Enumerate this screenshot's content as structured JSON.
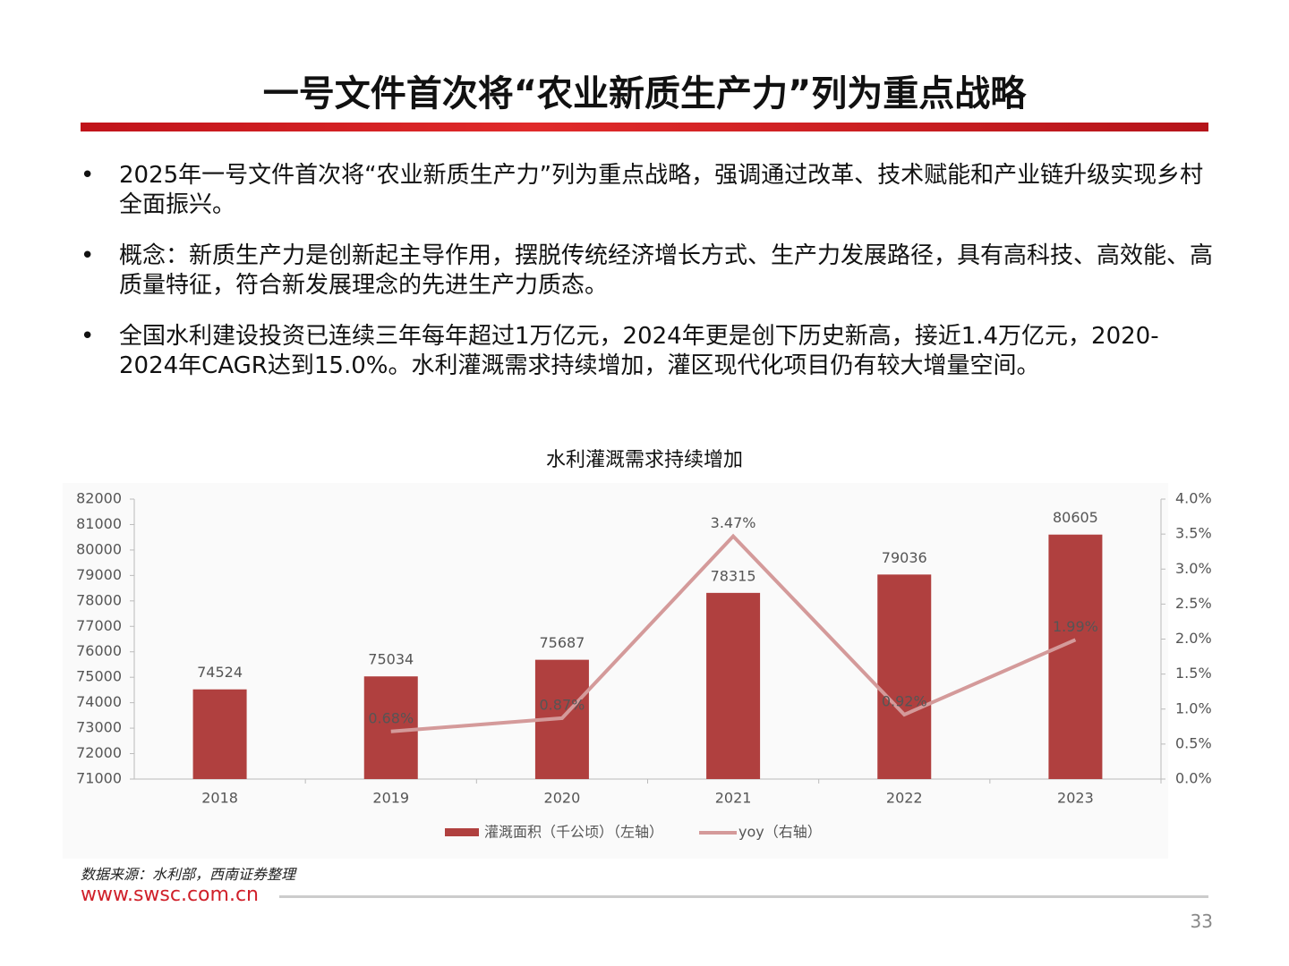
{
  "header": {
    "title": "一号文件首次将“农业新质生产力”列为重点战略"
  },
  "bullets": [
    "2025年一号文件首次将“农业新质生产力”列为重点战略，强调通过改革、技术赋能和产业链升级实现乡村全面振兴。",
    "概念：新质生产力是创新起主导作用，摆脱传统经济增长方式、生产力发展路径，具有高科技、高效能、高质量特征，符合新发展理念的先进生产力质态。",
    "全国水利建设投资已连续三年每年超过1万亿元，2024年更是创下历史新高，接近1.4万亿元，2020-2024年CAGR达到15.0%。水利灌溉需求持续增加，灌区现代化项目仍有较大增量空间。"
  ],
  "chart_data": {
    "type": "bar-line",
    "title": "水利灌溉需求持续增加",
    "categories": [
      "2018",
      "2019",
      "2020",
      "2021",
      "2022",
      "2023"
    ],
    "series": [
      {
        "name": "灌溉面积（千公顷）（左轴）",
        "type": "bar",
        "color": "#b0403f",
        "values": [
          74524,
          75034,
          75687,
          78315,
          79036,
          80605
        ]
      },
      {
        "name": "yoy（右轴）",
        "type": "line",
        "axis": "y2",
        "color": "#d49a9a",
        "values": [
          null,
          0.68,
          0.87,
          3.47,
          0.92,
          1.99
        ],
        "value_labels": [
          null,
          "0.68%",
          "0.87%",
          "3.47%",
          "0.92%",
          "1.99%"
        ]
      }
    ],
    "ylim": [
      71000,
      82000
    ],
    "yticks": [
      71000,
      72000,
      73000,
      74000,
      75000,
      76000,
      77000,
      78000,
      79000,
      80000,
      81000,
      82000
    ],
    "y2lim": [
      0,
      4
    ],
    "y2ticks": [
      {
        "value": 0,
        "label": "0.0%"
      },
      {
        "value": 0.5,
        "label": "0.5%"
      },
      {
        "value": 1,
        "label": "1.0%"
      },
      {
        "value": 1.5,
        "label": "1.5%"
      },
      {
        "value": 2,
        "label": "2.0%"
      },
      {
        "value": 2.5,
        "label": "2.5%"
      },
      {
        "value": 3,
        "label": "3.0%"
      },
      {
        "value": 3.5,
        "label": "3.5%"
      },
      {
        "value": 4,
        "label": "4.0%"
      }
    ],
    "legend": "bottom",
    "grid": false
  },
  "footer": {
    "source": "数据来源：水利部，西南证券整理",
    "website": "www.swsc.com.cn",
    "page": "33"
  }
}
